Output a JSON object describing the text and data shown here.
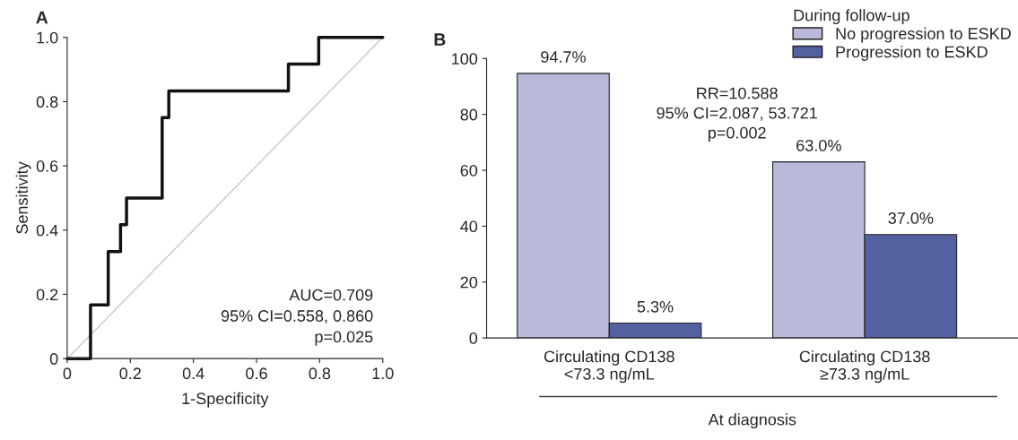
{
  "chart_data": [
    {
      "type": "line",
      "title": "A",
      "xlabel": "1-Specificity",
      "ylabel": "Sensitivity",
      "xlim": [
        0,
        1
      ],
      "ylim": [
        0,
        1
      ],
      "xticks": [
        0,
        0.2,
        0.4,
        0.6,
        0.8,
        {
          "value": 1,
          "label": "1.0"
        }
      ],
      "yticks": [
        0,
        0.2,
        0.4,
        0.6,
        0.8,
        {
          "value": 1,
          "label": "1.0"
        }
      ],
      "grid": false,
      "legend": false,
      "series": [
        {
          "color": "#c8c8c8",
          "x": [
            0,
            1
          ],
          "values": [
            0,
            1
          ]
        },
        {
          "color": "#111111",
          "x": [
            0,
            0.074,
            0.074,
            0.13,
            0.13,
            0.169,
            0.169,
            0.188,
            0.188,
            0.301,
            0.301,
            0.322,
            0.322,
            0.701,
            0.701,
            0.797,
            0.797,
            1
          ],
          "values": [
            0,
            0,
            0.167,
            0.167,
            0.333,
            0.333,
            0.417,
            0.417,
            0.5,
            0.5,
            0.75,
            0.75,
            0.833,
            0.833,
            0.917,
            0.917,
            1,
            1
          ]
        }
      ],
      "annotations": [
        "AUC=0.709\n95% CI=0.558, 0.860\np=0.025"
      ]
    },
    {
      "type": "bar",
      "title": "B",
      "xlabel": "At diagnosis",
      "legend_title": "During follow-up",
      "legend": "top right",
      "categories": [
        "Circulating CD138\n<73.3 ng/mL",
        "Circulating CD138\n≥73.3 ng/mL"
      ],
      "ylim": [
        0,
        100
      ],
      "yticks": [
        0,
        20,
        40,
        60,
        80,
        100
      ],
      "grid": false,
      "series": [
        {
          "name": "No progression to ESKD",
          "color": "#b9b9d9",
          "values": [
            94.7,
            63.0
          ],
          "value_labels": [
            "94.7%",
            "63.0%"
          ]
        },
        {
          "name": "Progression to ESKD",
          "color": "#5560a0",
          "values": [
            5.3,
            37.0
          ],
          "value_labels": [
            "5.3%",
            "37.0%"
          ]
        }
      ],
      "annotations": [
        "RR=10.588\n95% CI=2.087, 53.721\np=0.002"
      ]
    }
  ]
}
